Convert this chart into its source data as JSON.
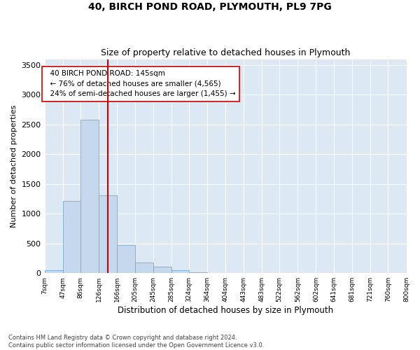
{
  "title1": "40, BIRCH POND ROAD, PLYMOUTH, PL9 7PG",
  "title2": "Size of property relative to detached houses in Plymouth",
  "xlabel": "Distribution of detached houses by size in Plymouth",
  "ylabel": "Number of detached properties",
  "footer": "Contains HM Land Registry data © Crown copyright and database right 2024.\nContains public sector information licensed under the Open Government Licence v3.0.",
  "bar_color": "#c5d8ee",
  "bar_edge_color": "#7aaad0",
  "vline_color": "#cc0000",
  "vline_x": 145,
  "annotation_text": "  40 BIRCH POND ROAD: 145sqm\n  ← 76% of detached houses are smaller (4,565)\n  24% of semi-detached houses are larger (1,455) →",
  "bin_edges": [
    7,
    47,
    86,
    126,
    166,
    205,
    245,
    285,
    324,
    364,
    404,
    443,
    483,
    522,
    562,
    602,
    641,
    681,
    721,
    760,
    800
  ],
  "bar_heights": [
    55,
    1220,
    2580,
    1310,
    470,
    180,
    105,
    45,
    18,
    8,
    4,
    2,
    1,
    0,
    0,
    0,
    0,
    0,
    0,
    0
  ],
  "ylim": [
    0,
    3600
  ],
  "yticks": [
    0,
    500,
    1000,
    1500,
    2000,
    2500,
    3000,
    3500
  ],
  "fig_bg_color": "#ffffff",
  "plot_bg_color": "#dde8f5",
  "title1_fontsize": 10,
  "title2_fontsize": 9,
  "xlabel_fontsize": 8.5,
  "ylabel_fontsize": 8
}
